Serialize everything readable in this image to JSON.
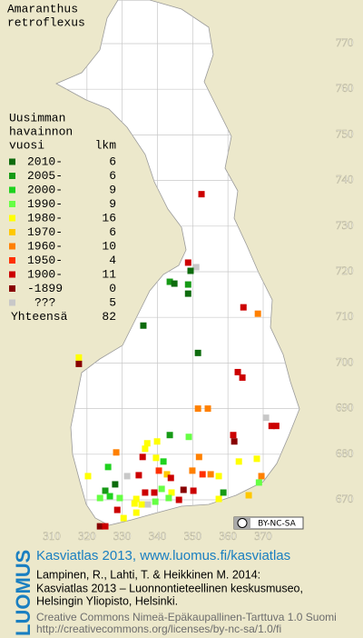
{
  "title": [
    "Amaranthus",
    "retroflexus"
  ],
  "legend": {
    "heading": [
      "Uusimman",
      "havainnon",
      "vuosi"
    ],
    "count_heading": "lkm",
    "items": [
      {
        "label": "2010-",
        "count": 6,
        "color": "#0d6b0d"
      },
      {
        "label": "2005-",
        "count": 6,
        "color": "#169a16"
      },
      {
        "label": "2000-",
        "count": 9,
        "color": "#1fd21f"
      },
      {
        "label": "1990-",
        "count": 9,
        "color": "#66ff44"
      },
      {
        "label": "1980-",
        "count": 16,
        "color": "#ffff00"
      },
      {
        "label": "1970-",
        "count": 6,
        "color": "#ffc800"
      },
      {
        "label": "1960-",
        "count": 10,
        "color": "#ff8000"
      },
      {
        "label": "1950-",
        "count": 4,
        "color": "#ff3000"
      },
      {
        "label": "1900-",
        "count": 11,
        "color": "#cc0000"
      },
      {
        "label": "-1899",
        "count": 0,
        "color": "#880000"
      },
      {
        "label": "???",
        "count": 5,
        "color": "#c8c8c8"
      }
    ],
    "total_label": "Yhteensä",
    "total": 82
  },
  "map": {
    "xlim": [
      310,
      370
    ],
    "ylim": [
      670,
      770
    ],
    "xticks": [
      310,
      320,
      330,
      340,
      350,
      360,
      370
    ],
    "yticks": [
      670,
      680,
      690,
      700,
      710,
      720,
      730,
      740,
      750,
      760,
      770
    ],
    "points": [
      [
        352.5,
        737,
        8
      ],
      [
        348.7,
        722,
        8
      ],
      [
        351,
        721,
        10
      ],
      [
        349.4,
        720.2,
        0
      ],
      [
        343.5,
        717.8,
        1
      ],
      [
        344.8,
        717.4,
        0
      ],
      [
        348.7,
        717.2,
        1
      ],
      [
        348.7,
        715.2,
        0
      ],
      [
        364.4,
        712.2,
        8
      ],
      [
        368.5,
        710.8,
        6
      ],
      [
        336,
        708.2,
        0
      ],
      [
        351.5,
        702.2,
        0
      ],
      [
        317.7,
        701.2,
        4
      ],
      [
        317.7,
        699.8,
        9
      ],
      [
        362.8,
        698,
        8
      ],
      [
        364.1,
        696.8,
        8
      ],
      [
        351.5,
        690,
        6
      ],
      [
        354.3,
        690,
        6
      ],
      [
        370.8,
        688,
        10
      ],
      [
        372.4,
        686.2,
        8
      ],
      [
        373.7,
        686.2,
        8
      ],
      [
        361.5,
        684.2,
        8
      ],
      [
        361.8,
        682.8,
        9
      ],
      [
        343.5,
        684.2,
        1
      ],
      [
        348.9,
        683.8,
        3
      ],
      [
        339.9,
        682.8,
        4
      ],
      [
        337.1,
        682.4,
        4
      ],
      [
        336.5,
        681.2,
        4
      ],
      [
        328.3,
        680.4,
        6
      ],
      [
        339.6,
        679.2,
        4
      ],
      [
        341.7,
        678.4,
        2
      ],
      [
        335.8,
        679.4,
        8
      ],
      [
        351.8,
        679.4,
        6
      ],
      [
        363.1,
        678.4,
        4
      ],
      [
        368.2,
        679,
        4
      ],
      [
        326,
        677.2,
        2
      ],
      [
        320.3,
        675.2,
        4
      ],
      [
        340.4,
        676.4,
        7
      ],
      [
        342.7,
        675.6,
        5
      ],
      [
        343.8,
        674.8,
        8
      ],
      [
        334.7,
        675.4,
        8
      ],
      [
        331.4,
        675.2,
        10
      ],
      [
        349.9,
        676.4,
        6
      ],
      [
        352.8,
        675.6,
        7
      ],
      [
        355.1,
        675.6,
        6
      ],
      [
        357.4,
        675.2,
        4
      ],
      [
        369.5,
        675.2,
        6
      ],
      [
        368.8,
        673.8,
        3
      ],
      [
        328,
        673.4,
        0
      ],
      [
        325.2,
        672,
        1
      ],
      [
        326.5,
        670.8,
        2
      ],
      [
        323.7,
        670.4,
        3
      ],
      [
        329.3,
        670.4,
        3
      ],
      [
        336.5,
        671.6,
        8
      ],
      [
        339.1,
        671.6,
        8
      ],
      [
        341.2,
        672.4,
        3
      ],
      [
        344,
        671.6,
        4
      ],
      [
        347.4,
        672.2,
        9
      ],
      [
        350.2,
        672,
        8
      ],
      [
        358.7,
        671.6,
        1
      ],
      [
        357.4,
        670.2,
        4
      ],
      [
        365.9,
        671,
        5
      ],
      [
        334,
        670.2,
        4
      ],
      [
        335.5,
        669,
        4
      ],
      [
        333.5,
        669.2,
        4
      ],
      [
        337.3,
        669,
        10
      ],
      [
        339.4,
        669.6,
        3
      ],
      [
        343.2,
        670.4,
        3
      ],
      [
        346.1,
        670,
        8
      ],
      [
        323.7,
        664.2,
        9
      ],
      [
        325.2,
        664.2,
        8
      ],
      [
        330.4,
        666,
        4
      ],
      [
        334,
        667.2,
        4
      ],
      [
        328.6,
        667.8,
        8
      ]
    ]
  },
  "license_badge": "BY-NC-SA",
  "footer": {
    "brand": "LUOMUS",
    "headline": "Kasviatlas 2013, www.luomus.fi/kasviatlas",
    "citation": [
      "Lampinen, R., Lahti, T. & Heikkinen M. 2014:",
      "Kasviatlas 2013 – Luonnontieteellinen keskusmuseo,",
      "Helsingin Yliopisto, Helsinki."
    ],
    "license": [
      "Creative Commons Nimeä-Epäkaupallinen-Tarttuva 1.0 Suomi",
      "http://creativecommons.org/licenses/by-nc-sa/1.0/fi"
    ]
  }
}
